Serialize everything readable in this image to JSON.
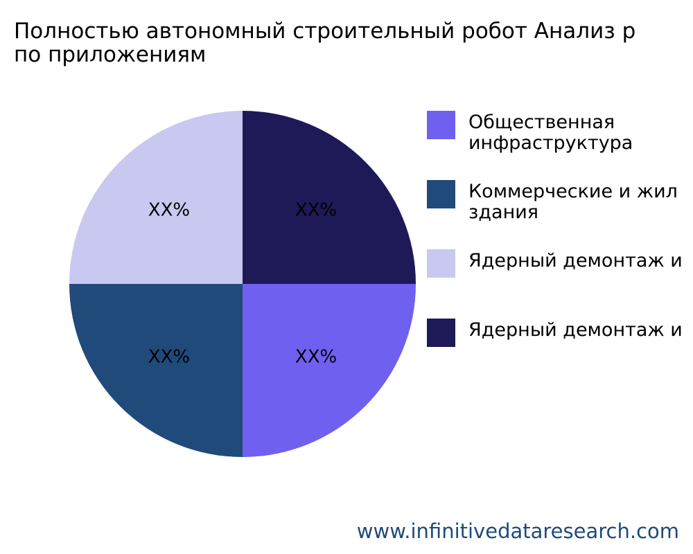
{
  "chart_data": {
    "type": "pie",
    "title": [
      "Полностью автономный строительный робот Анализ р",
      "по приложениям"
    ],
    "categories": [
      "Общественная инфраструктура",
      "Коммерческие и жил здания",
      "Ядерный демонтаж и",
      "Ядерный демонтаж и"
    ],
    "values": [
      25,
      25,
      25,
      25
    ],
    "value_labels": [
      "XX%",
      "XX%",
      "XX%",
      "XX%"
    ],
    "colors": [
      "#7060f0",
      "#1f4a7a",
      "#c8c8f0",
      "#1e1957"
    ],
    "source": "www.infinitivedataresearch.com"
  }
}
